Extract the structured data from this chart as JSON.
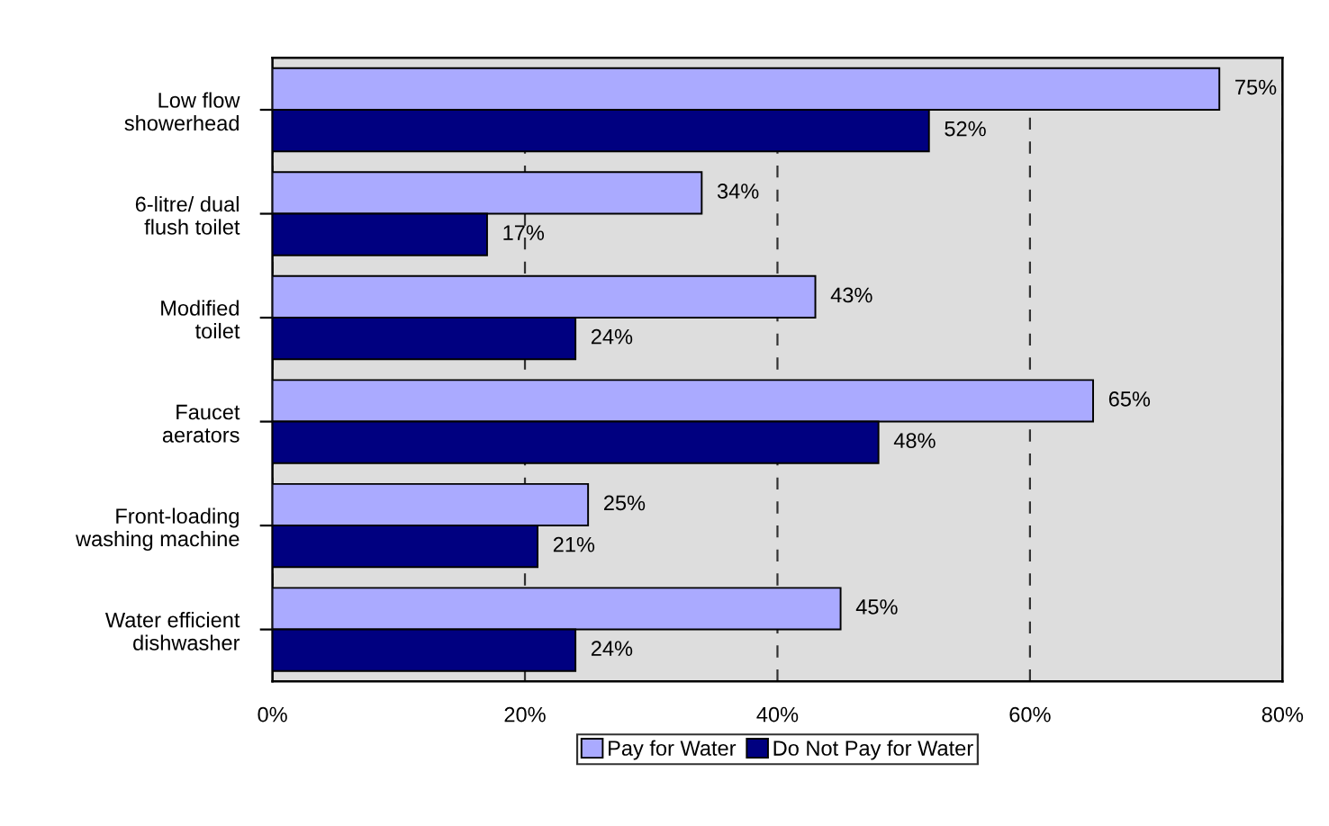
{
  "chart_data": {
    "type": "bar",
    "orientation": "horizontal",
    "categories": [
      "Low flow\nshowerhead",
      "6-litre/ dual\nflush toilet",
      "Modified\ntoilet",
      "Faucet\naerators",
      "Front-loading\nwashing machine",
      "Water efficient\ndishwasher"
    ],
    "series": [
      {
        "name": "Pay for Water",
        "color": "#aaaaff",
        "values": [
          75,
          34,
          43,
          65,
          25,
          45
        ],
        "value_labels": [
          "75%",
          "34%",
          "43%",
          "65%",
          "25%",
          "45%"
        ]
      },
      {
        "name": "Do Not Pay for Water",
        "color": "#000080",
        "values": [
          52,
          17,
          24,
          48,
          21,
          24
        ],
        "value_labels": [
          "52%",
          "17%",
          "24%",
          "48%",
          "21%",
          "24%"
        ]
      }
    ],
    "xlim": [
      0,
      80
    ],
    "xticks": [
      {
        "value": 0,
        "label": "0%"
      },
      {
        "value": 20,
        "label": "20%"
      },
      {
        "value": 40,
        "label": "40%"
      },
      {
        "value": 60,
        "label": "60%"
      },
      {
        "value": 80,
        "label": "80%"
      }
    ],
    "grid": "x",
    "legend": "bottom"
  }
}
